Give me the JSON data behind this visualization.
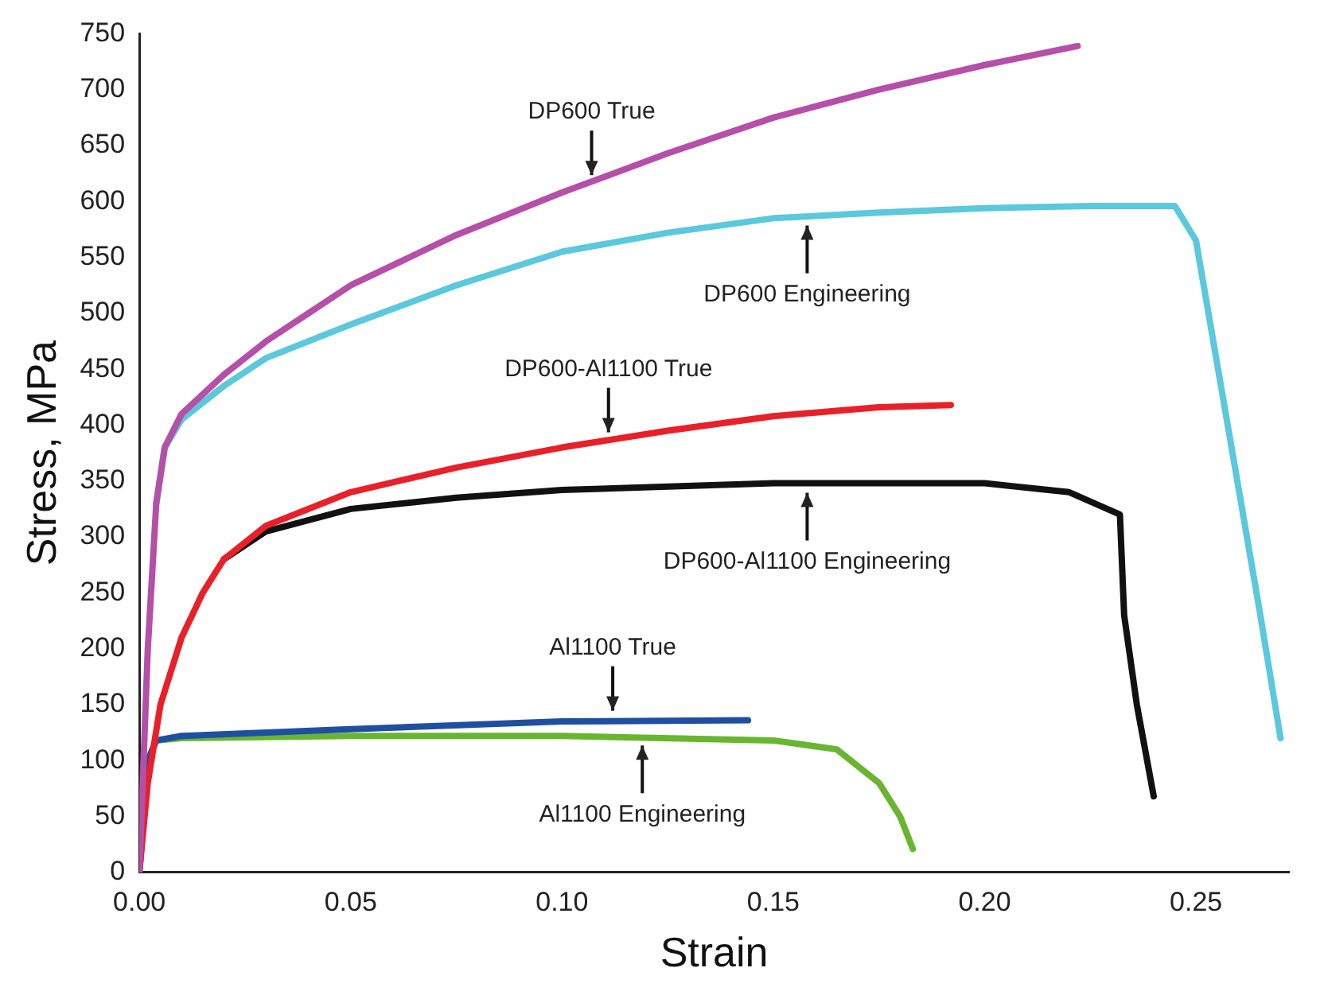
{
  "chart_data": {
    "type": "line",
    "xlabel": "Strain",
    "ylabel": "Stress, MPa",
    "xlim": [
      0,
      0.272
    ],
    "ylim": [
      0,
      750
    ],
    "xticks": [
      {
        "value": 0,
        "label": "0.00"
      },
      {
        "value": 0.05,
        "label": "0.05"
      },
      {
        "value": 0.1,
        "label": "0.10"
      },
      {
        "value": 0.15,
        "label": "0.15"
      },
      {
        "value": 0.2,
        "label": "0.20"
      },
      {
        "value": 0.25,
        "label": "0.25"
      }
    ],
    "yticks": [
      0,
      50,
      100,
      150,
      200,
      250,
      300,
      350,
      400,
      450,
      500,
      550,
      600,
      650,
      700,
      750
    ],
    "grid": false,
    "legend": false,
    "marker": "none",
    "line_style": "solid",
    "series": [
      {
        "color": "#b54fa8",
        "x": [
          0,
          0.002,
          0.004,
          0.006,
          0.01,
          0.02,
          0.03,
          0.04,
          0.05,
          0.075,
          0.1,
          0.125,
          0.15,
          0.175,
          0.2,
          0.222
        ],
        "values": [
          0,
          200,
          330,
          380,
          410,
          445,
          475,
          500,
          525,
          570,
          608,
          643,
          675,
          700,
          722,
          739
        ]
      },
      {
        "color": "#5bc8dc",
        "x": [
          0.004,
          0.006,
          0.01,
          0.02,
          0.03,
          0.05,
          0.075,
          0.1,
          0.125,
          0.15,
          0.175,
          0.2,
          0.225,
          0.245,
          0.25,
          0.255,
          0.26,
          0.265,
          0.27
        ],
        "values": [
          330,
          380,
          405,
          435,
          460,
          490,
          525,
          555,
          572,
          585,
          590,
          594,
          596,
          596,
          565,
          455,
          345,
          235,
          120
        ]
      },
      {
        "color": "#e8202a",
        "x": [
          0,
          0.002,
          0.005,
          0.01,
          0.015,
          0.02,
          0.03,
          0.05,
          0.075,
          0.1,
          0.125,
          0.15,
          0.175,
          0.192
        ],
        "values": [
          0,
          80,
          150,
          210,
          250,
          280,
          310,
          340,
          362,
          380,
          395,
          408,
          416,
          418
        ]
      },
      {
        "color": "#111111",
        "x": [
          0.02,
          0.03,
          0.05,
          0.075,
          0.1,
          0.15,
          0.2,
          0.22,
          0.226,
          0.232,
          0.233,
          0.236,
          0.24
        ],
        "values": [
          280,
          305,
          325,
          335,
          342,
          348,
          348,
          340,
          330,
          320,
          230,
          150,
          68
        ]
      },
      {
        "color": "#1f4fa0",
        "x": [
          0,
          0.002,
          0.004,
          0.01,
          0.05,
          0.1,
          0.144
        ],
        "values": [
          0,
          100,
          118,
          122,
          128,
          135,
          136
        ]
      },
      {
        "color": "#6ab530",
        "x": [
          0,
          0.002,
          0.004,
          0.01,
          0.05,
          0.1,
          0.15,
          0.165,
          0.175,
          0.18,
          0.183
        ],
        "values": [
          0,
          100,
          118,
          120,
          122,
          122,
          118,
          110,
          80,
          50,
          21
        ]
      }
    ],
    "annotations": [
      {
        "text": "DP600 True",
        "x": 0.107,
        "y": 615
      },
      {
        "text": "DP600 Engineering",
        "x": 0.158,
        "y": 587
      },
      {
        "text": "DP600-Al1100 True",
        "x": 0.111,
        "y": 385
      },
      {
        "text": "DP600-Al1100 Engineering",
        "x": 0.158,
        "y": 348
      },
      {
        "text": "Al1100 True",
        "x": 0.112,
        "y": 136
      },
      {
        "text": "Al1100 Engineering",
        "x": 0.119,
        "y": 122
      }
    ]
  }
}
